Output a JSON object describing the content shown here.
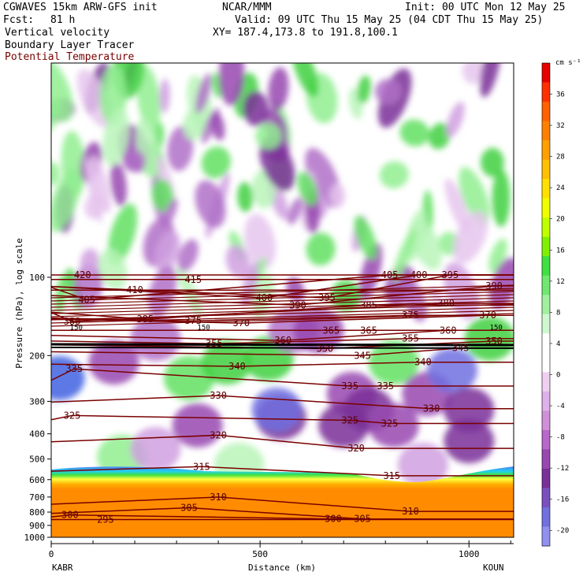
{
  "header": {
    "model": "CGWAVES 15km ARW-GFS init",
    "center": "NCAR/MMM",
    "init": "Init: 00 UTC Mon 12 May 25",
    "fcst_label": "Fcst:",
    "fcst_value": "81 h",
    "valid": "Valid: 09 UTC Thu 15 May 25 (04 CDT Thu 15 May 25)",
    "field1": "Vertical velocity",
    "field2": "Boundary Layer Tracer",
    "field3": "Potential Temperature",
    "xy": "XY= 187.4,173.8 to 191.8,100.1"
  },
  "colors": {
    "potential_temperature": "#7a0000",
    "tracer_line": "#000000"
  },
  "chart_data": {
    "type": "heatmap",
    "xlabel": "Distance (km)",
    "ylabel": "Pressure (hPa), log scale",
    "x_ticks": [
      0,
      500,
      1000
    ],
    "xlim": [
      0,
      1107
    ],
    "y_ticks": [
      100,
      200,
      300,
      400,
      500,
      600,
      700,
      800,
      900,
      1000
    ],
    "ylim": [
      1000,
      15
    ],
    "y_scale": "log",
    "start_station": "KABR",
    "end_station": "KOUN",
    "colorbar": {
      "unit": "cm s⁻¹",
      "ticks": [
        36,
        32,
        28,
        24,
        20,
        16,
        12,
        8,
        4,
        0,
        -4,
        -8,
        -12,
        -16,
        -20
      ],
      "colors": [
        "#e60000",
        "#ff3000",
        "#ff6000",
        "#ff8000",
        "#ffa000",
        "#ffc000",
        "#ffe000",
        "#f0ff00",
        "#c0ff00",
        "#80f000",
        "#40e040",
        "#70e870",
        "#a0f0a0",
        "#d0f8d0",
        "#ffffff",
        "#ffffff",
        "#f0d0f0",
        "#e0b0e8",
        "#d090d8",
        "#b868c8",
        "#9848b0",
        "#7a3098",
        "#7a50c0",
        "#7070e0",
        "#9090f0"
      ]
    },
    "potential_temperature_labels": [
      {
        "value": 420,
        "x": 75,
        "p": 98
      },
      {
        "value": 415,
        "x": 340,
        "p": 102
      },
      {
        "value": 405,
        "x": 810,
        "p": 98
      },
      {
        "value": 400,
        "x": 880,
        "p": 98
      },
      {
        "value": 395,
        "x": 955,
        "p": 98
      },
      {
        "value": 405,
        "x": 85,
        "p": 122
      },
      {
        "value": 410,
        "x": 200,
        "p": 112
      },
      {
        "value": 400,
        "x": 510,
        "p": 120
      },
      {
        "value": 390,
        "x": 590,
        "p": 128
      },
      {
        "value": 395,
        "x": 660,
        "p": 120
      },
      {
        "value": 385,
        "x": 760,
        "p": 128
      },
      {
        "value": 380,
        "x": 945,
        "p": 126
      },
      {
        "value": 390,
        "x": 1060,
        "p": 108
      },
      {
        "value": 380,
        "x": 50,
        "p": 148
      },
      {
        "value": 385,
        "x": 225,
        "p": 145
      },
      {
        "value": 375,
        "x": 340,
        "p": 147
      },
      {
        "value": 370,
        "x": 455,
        "p": 150
      },
      {
        "value": 375,
        "x": 860,
        "p": 140
      },
      {
        "value": 370,
        "x": 1045,
        "p": 140
      },
      {
        "value": 365,
        "x": 670,
        "p": 160
      },
      {
        "value": 365,
        "x": 760,
        "p": 160
      },
      {
        "value": 360,
        "x": 950,
        "p": 160
      },
      {
        "value": 355,
        "x": 390,
        "p": 180
      },
      {
        "value": 360,
        "x": 555,
        "p": 175
      },
      {
        "value": 350,
        "x": 655,
        "p": 188
      },
      {
        "value": 355,
        "x": 860,
        "p": 172
      },
      {
        "value": 345,
        "x": 980,
        "p": 187
      },
      {
        "value": 350,
        "x": 1060,
        "p": 176
      },
      {
        "value": 345,
        "x": 745,
        "p": 200
      },
      {
        "value": 340,
        "x": 445,
        "p": 220
      },
      {
        "value": 340,
        "x": 890,
        "p": 212
      },
      {
        "value": 335,
        "x": 55,
        "p": 225
      },
      {
        "value": 335,
        "x": 715,
        "p": 262
      },
      {
        "value": 335,
        "x": 800,
        "p": 262
      },
      {
        "value": 330,
        "x": 400,
        "p": 285
      },
      {
        "value": 330,
        "x": 910,
        "p": 320
      },
      {
        "value": 325,
        "x": 50,
        "p": 340
      },
      {
        "value": 325,
        "x": 715,
        "p": 355
      },
      {
        "value": 325,
        "x": 810,
        "p": 365
      },
      {
        "value": 320,
        "x": 400,
        "p": 405
      },
      {
        "value": 320,
        "x": 730,
        "p": 455
      },
      {
        "value": 315,
        "x": 360,
        "p": 535
      },
      {
        "value": 315,
        "x": 815,
        "p": 580
      },
      {
        "value": 310,
        "x": 400,
        "p": 700
      },
      {
        "value": 310,
        "x": 860,
        "p": 795
      },
      {
        "value": 305,
        "x": 330,
        "p": 770
      },
      {
        "value": 300,
        "x": 45,
        "p": 820
      },
      {
        "value": 295,
        "x": 130,
        "p": 855
      },
      {
        "value": 300,
        "x": 675,
        "p": 850
      },
      {
        "value": 305,
        "x": 745,
        "p": 850
      }
    ],
    "tracer_labels": [
      {
        "value": "150",
        "x": 60,
        "p": 156
      },
      {
        "value": "150",
        "x": 365,
        "p": 156
      },
      {
        "value": "150",
        "x": 1065,
        "p": 156
      }
    ]
  }
}
